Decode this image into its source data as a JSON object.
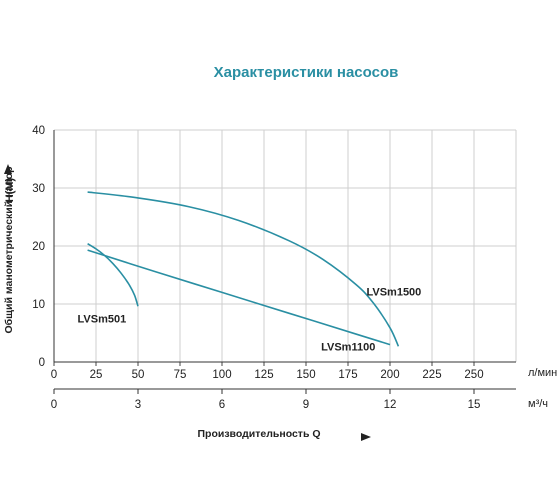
{
  "chart_data": {
    "type": "line",
    "title": "Характеристики насосов",
    "xlabel": "Производительность Q",
    "ylabel": "Общий манометрический напор",
    "ylabel_unit": "H(M)",
    "x_unit_primary": "л/мин",
    "x_unit_secondary": "м³/ч",
    "xlim": [
      0,
      275
    ],
    "ylim": [
      0,
      40
    ],
    "x_ticks_primary": [
      "0",
      "25",
      "50",
      "75",
      "100",
      "125",
      "150",
      "175",
      "200",
      "225",
      "250"
    ],
    "x_ticks_secondary": [
      "0",
      "3",
      "6",
      "9",
      "12",
      "15"
    ],
    "y_ticks": [
      "0",
      "10",
      "20",
      "30",
      "40"
    ],
    "grid": true,
    "series": [
      {
        "name": "LVSm501",
        "color": "#2a8fa3",
        "x": [
          20,
          25,
          30,
          35,
          40,
          45,
          48,
          50
        ],
        "y": [
          20.4,
          19.5,
          18.4,
          17.0,
          15.3,
          13.2,
          11.5,
          9.6
        ]
      },
      {
        "name": "LVSm1100",
        "color": "#2a8fa3",
        "x": [
          20,
          60,
          100,
          140,
          180,
          200
        ],
        "y": [
          19.3,
          15.6,
          12.0,
          8.4,
          4.8,
          3.0
        ]
      },
      {
        "name": "LVSm1500",
        "color": "#2a8fa3",
        "x": [
          20,
          50,
          80,
          110,
          140,
          160,
          180,
          190,
          200,
          205
        ],
        "y": [
          29.3,
          28.3,
          26.8,
          24.4,
          20.9,
          17.7,
          13.3,
          10.2,
          5.9,
          2.7
        ]
      }
    ]
  }
}
